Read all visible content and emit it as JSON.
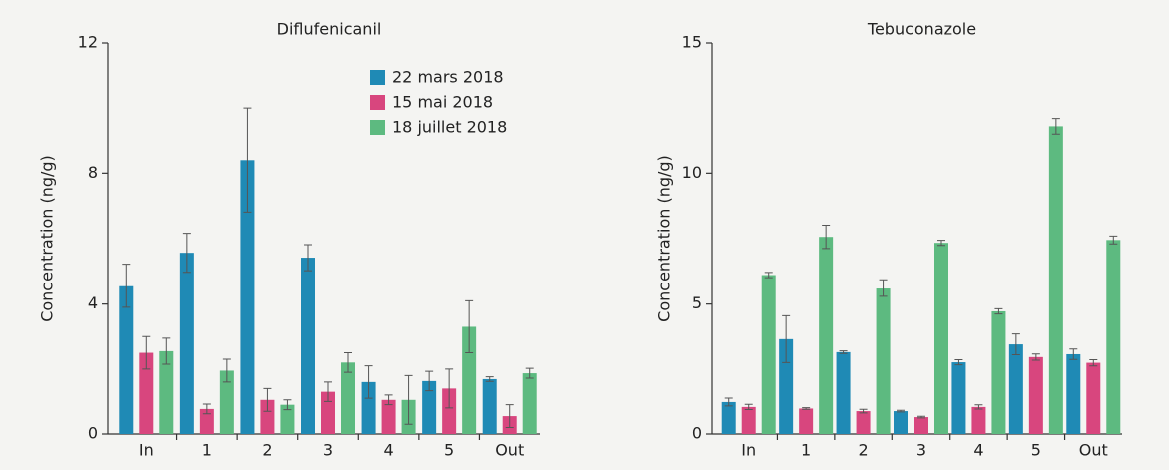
{
  "chart_data": [
    {
      "type": "bar",
      "title": "Diflufenicanil",
      "y_label": "Concentration (ng/g)",
      "categories": [
        "In",
        "1",
        "2",
        "3",
        "4",
        "5",
        "Out"
      ],
      "ylim": [
        0,
        12
      ],
      "yticks": [
        0,
        4,
        8,
        12
      ],
      "legend": "top-right",
      "series": [
        {
          "name": "22 mars 2018",
          "color": "#1f8ab5",
          "values": [
            4.55,
            5.55,
            8.4,
            5.4,
            1.6,
            1.63,
            1.69
          ],
          "errors": [
            0.65,
            0.6,
            1.6,
            0.4,
            0.5,
            0.3,
            0.07
          ]
        },
        {
          "name": "15 mai 2018",
          "color": "#d8467e",
          "values": [
            2.5,
            0.77,
            1.05,
            1.3,
            1.05,
            1.4,
            0.55
          ],
          "errors": [
            0.5,
            0.15,
            0.35,
            0.3,
            0.15,
            0.6,
            0.35
          ]
        },
        {
          "name": "18 juillet 2018",
          "color": "#5dba80",
          "values": [
            2.55,
            1.95,
            0.9,
            2.2,
            1.05,
            3.3,
            1.87
          ],
          "errors": [
            0.4,
            0.35,
            0.15,
            0.3,
            0.75,
            0.8,
            0.15
          ]
        }
      ]
    },
    {
      "type": "bar",
      "title": "Tebuconazole",
      "y_label": "Concentration (ng/g)",
      "categories": [
        "In",
        "1",
        "2",
        "3",
        "4",
        "5",
        "Out"
      ],
      "ylim": [
        0,
        15
      ],
      "yticks": [
        0,
        5,
        10,
        15
      ],
      "series": [
        {
          "color": "#1f8ab5",
          "values": [
            1.23,
            3.65,
            3.15,
            0.88,
            2.76,
            3.45,
            3.07
          ],
          "errors": [
            0.15,
            0.9,
            0.05,
            0.03,
            0.1,
            0.4,
            0.2
          ]
        },
        {
          "color": "#d8467e",
          "values": [
            1.04,
            0.98,
            0.88,
            0.65,
            1.04,
            2.96,
            2.74
          ],
          "errors": [
            0.1,
            0.03,
            0.07,
            0.03,
            0.08,
            0.12,
            0.12
          ]
        },
        {
          "color": "#5dba80",
          "values": [
            6.08,
            7.55,
            5.6,
            7.32,
            4.72,
            11.8,
            7.43
          ],
          "errors": [
            0.1,
            0.45,
            0.3,
            0.1,
            0.1,
            0.3,
            0.15
          ]
        }
      ]
    }
  ]
}
